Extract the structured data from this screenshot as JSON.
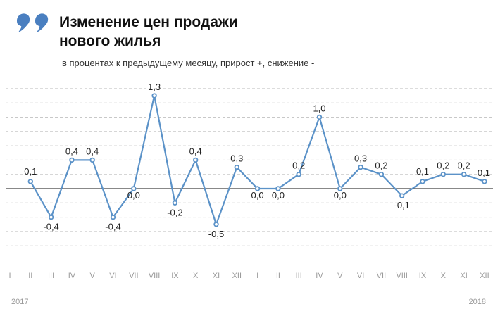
{
  "header": {
    "title_line1": "Изменение цен продажи",
    "title_line2": "нового жилья",
    "subtitle": "в процентах к предыдущему месяцу, прирост +, снижение -"
  },
  "chart_data": {
    "type": "line",
    "title": "Изменение цен продажи нового жилья",
    "subtitle": "в процентах к предыдущему месяцу, прирост +, снижение -",
    "x": [
      "I",
      "II",
      "III",
      "IV",
      "V",
      "VI",
      "VII",
      "VIII",
      "IX",
      "X",
      "XI",
      "XII",
      "I",
      "II",
      "III",
      "IV",
      "V",
      "VI",
      "VII",
      "VIII",
      "IX",
      "X",
      "XI",
      "XII"
    ],
    "year_labels": [
      "2017",
      "2018"
    ],
    "series": [
      {
        "values": [
          null,
          0.1,
          -0.4,
          0.4,
          0.4,
          -0.4,
          0.0,
          1.3,
          -0.2,
          0.4,
          -0.5,
          0.3,
          0.0,
          0.0,
          0.2,
          1.0,
          0.0,
          0.3,
          0.2,
          -0.1,
          0.1,
          0.2,
          0.2,
          0.1
        ],
        "labels": [
          "",
          "0,1",
          "-0,4",
          "0,4",
          "0,4",
          "-0,4",
          "0,0",
          "1,3",
          "-0,2",
          "0,4",
          "-0,5",
          "0,3",
          "0,0",
          "0,0",
          "0,2",
          "1,0",
          "0,0",
          "0,3",
          "0,2",
          "-0,1",
          "0,1",
          "0,2",
          "0,2",
          "0,1"
        ],
        "color": "#5b92c8"
      }
    ],
    "ylim": [
      -0.8,
      1.4
    ],
    "grid": true,
    "grid_style": "dashed",
    "legend": "none",
    "accent_color": "#4a7fc0"
  }
}
